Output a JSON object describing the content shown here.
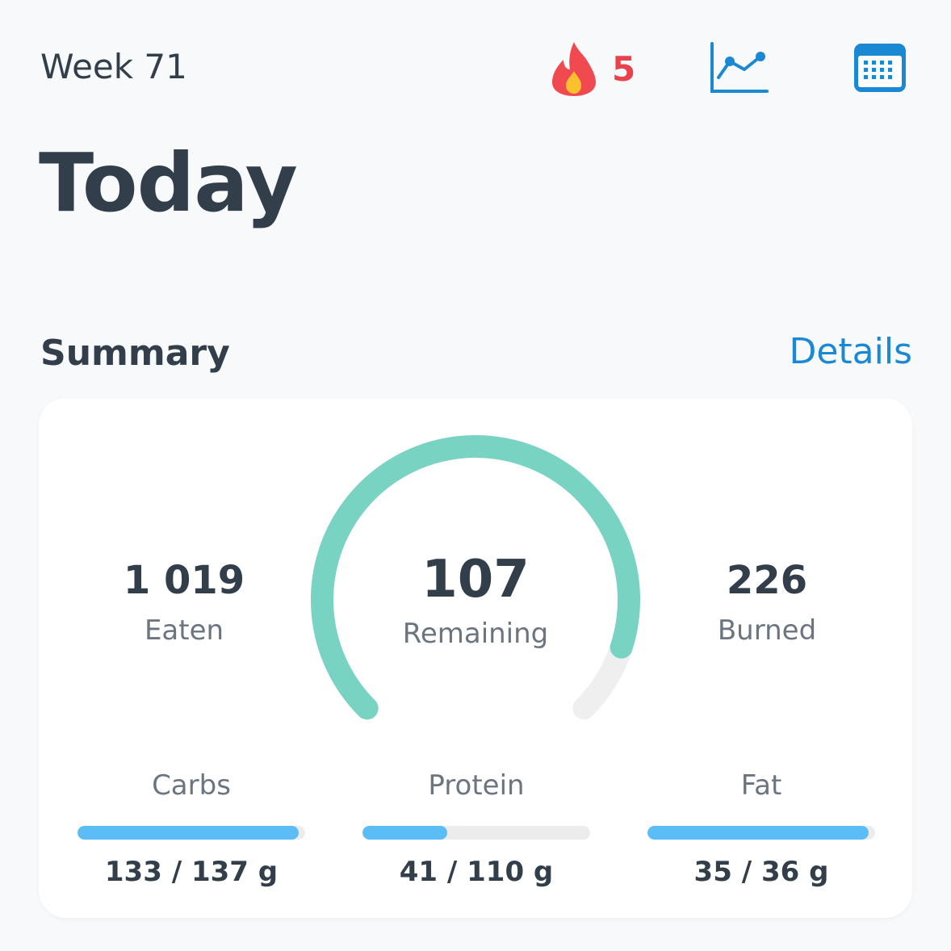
{
  "header": {
    "week_label": "Week 71",
    "streak_count": "5",
    "title": "Today"
  },
  "summary": {
    "section_title": "Summary",
    "details_label": "Details",
    "eaten": {
      "value": "1 019",
      "label": "Eaten"
    },
    "remaining": {
      "value": "107",
      "label": "Remaining"
    },
    "burned": {
      "value": "226",
      "label": "Burned"
    },
    "gauge_fraction": 0.9,
    "macros": [
      {
        "label": "Carbs",
        "value": "133 / 137 g",
        "fraction": 0.971
      },
      {
        "label": "Protein",
        "value": "41 / 110 g",
        "fraction": 0.373
      },
      {
        "label": "Fat",
        "value": "35 / 36 g",
        "fraction": 0.972
      }
    ]
  },
  "icons": [
    "fire-icon",
    "chart-icon",
    "calendar-icon"
  ],
  "colors": {
    "accent": "#1b88d4",
    "streak": "#e8434c",
    "gauge": "#78d3c2",
    "gauge_track": "#efefef",
    "macro_fill": "#5bbdf6",
    "macro_track": "#ececec"
  }
}
